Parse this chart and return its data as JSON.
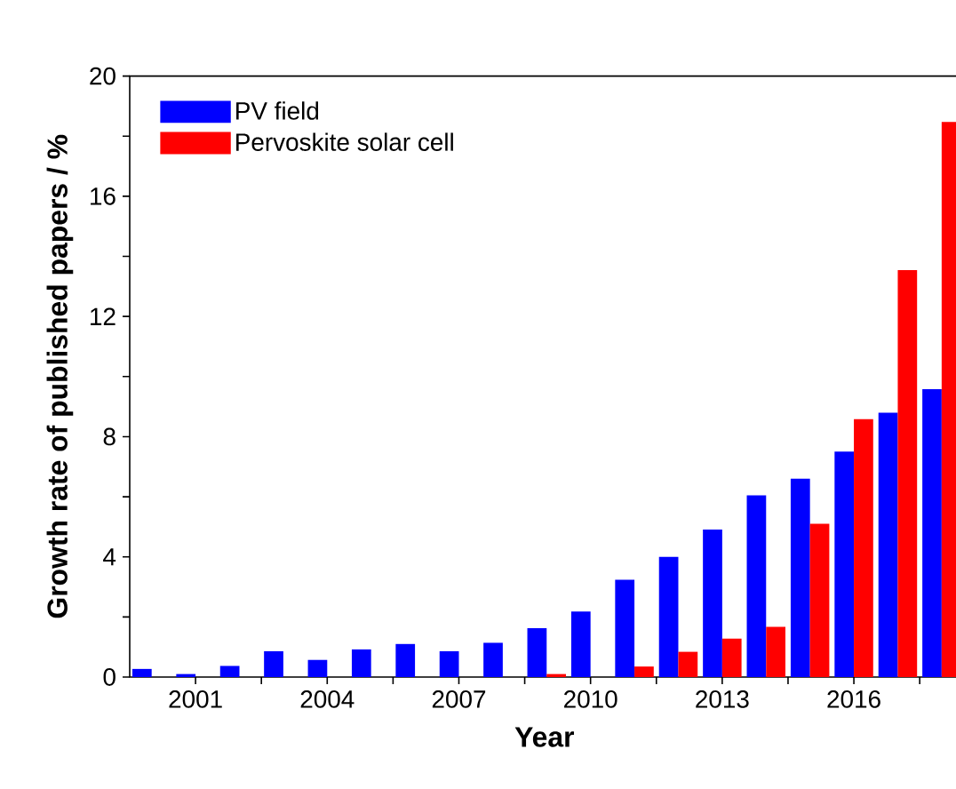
{
  "chart_data": {
    "type": "bar",
    "xlabel": "Year",
    "ylabel": "Growth rate of published papers / %",
    "x": [
      2000,
      2001,
      2002,
      2003,
      2004,
      2005,
      2006,
      2007,
      2008,
      2009,
      2010,
      2011,
      2012,
      2013,
      2014,
      2015,
      2016,
      2017,
      2018
    ],
    "series": [
      {
        "name": "PV field",
        "color": "#0000ff",
        "values": [
          0.27,
          0.1,
          0.37,
          0.86,
          0.57,
          0.92,
          1.1,
          0.86,
          1.14,
          1.63,
          2.18,
          3.24,
          4.0,
          4.91,
          6.05,
          6.6,
          7.5,
          8.8,
          9.58
        ]
      },
      {
        "name": "Pervoskite solar cell",
        "color": "#ff0000",
        "values": [
          null,
          null,
          null,
          null,
          null,
          null,
          null,
          null,
          null,
          0.1,
          null,
          0.35,
          0.84,
          1.28,
          1.67,
          5.1,
          8.58,
          13.54,
          18.47
        ]
      }
    ],
    "xlim": [
      1999.5,
      2018.4
    ],
    "xticks": [
      2001,
      {
        "value": 2002.5,
        "label": null
      },
      2004,
      {
        "value": 2005.5,
        "label": null
      },
      2007,
      {
        "value": 2008.5,
        "label": null
      },
      2010,
      {
        "value": 2011.5,
        "label": null
      },
      2013,
      {
        "value": 2014.5,
        "label": null
      },
      2016,
      {
        "value": 2017.5,
        "label": null
      }
    ],
    "ylim": [
      0,
      20
    ],
    "yticks": [
      0,
      {
        "value": 2,
        "label": null
      },
      4,
      {
        "value": 6,
        "label": null
      },
      8,
      {
        "value": 10,
        "label": null
      },
      12,
      {
        "value": 14,
        "label": null
      },
      16,
      {
        "value": 18,
        "label": null
      },
      20
    ],
    "legend": "top left"
  }
}
